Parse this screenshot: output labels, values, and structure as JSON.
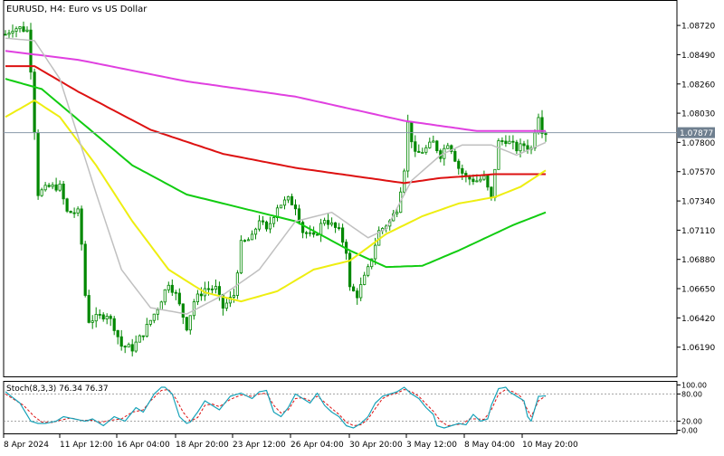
{
  "title": "EURUSD, H4:  Euro vs US Dollar",
  "chart_data": {
    "type": "candlestick",
    "symbol": "EURUSD",
    "timeframe": "H4",
    "description": "Euro vs US Dollar",
    "current_price": 1.07877,
    "current_price_label": "1.07877",
    "ylim": [
      1.0596,
      1.0892
    ],
    "price_ticks": [
      "1.08720",
      "1.08490",
      "1.08260",
      "1.08030",
      "1.07800",
      "1.07570",
      "1.07340",
      "1.07110",
      "1.06880",
      "1.06650",
      "1.06420",
      "1.06190"
    ],
    "x_labels": [
      "8 Apr 2024",
      "11 Apr 12:00",
      "16 Apr 04:00",
      "18 Apr 20:00",
      "23 Apr 12:00",
      "26 Apr 04:00",
      "30 Apr 20:00",
      "3 May 12:00",
      "8 May 04:00",
      "10 May 20:00"
    ],
    "price_anchors": [
      [
        0,
        1.0865
      ],
      [
        2,
        1.087
      ],
      [
        4,
        1.087
      ],
      [
        6,
        1.0868
      ],
      [
        7,
        1.0838
      ],
      [
        8,
        1.079
      ],
      [
        9,
        1.074
      ],
      [
        12,
        1.0745
      ],
      [
        15,
        1.0745
      ],
      [
        17,
        1.0725
      ],
      [
        20,
        1.0725
      ],
      [
        21,
        1.07
      ],
      [
        22,
        1.066
      ],
      [
        23,
        1.064
      ],
      [
        26,
        1.0643
      ],
      [
        28,
        1.0645
      ],
      [
        30,
        1.0635
      ],
      [
        32,
        1.062
      ],
      [
        35,
        1.0618
      ],
      [
        38,
        1.063
      ],
      [
        42,
        1.065
      ],
      [
        45,
        1.067
      ],
      [
        47,
        1.066
      ],
      [
        50,
        1.0635
      ],
      [
        52,
        1.0655
      ],
      [
        55,
        1.0665
      ],
      [
        58,
        1.0665
      ],
      [
        60,
        1.065
      ],
      [
        63,
        1.066
      ],
      [
        65,
        1.07
      ],
      [
        68,
        1.0705
      ],
      [
        70,
        1.072
      ],
      [
        72,
        1.071
      ],
      [
        75,
        1.073
      ],
      [
        78,
        1.0735
      ],
      [
        80,
        1.073
      ],
      [
        82,
        1.071
      ],
      [
        85,
        1.0705
      ],
      [
        88,
        1.072
      ],
      [
        90,
        1.0715
      ],
      [
        92,
        1.071
      ],
      [
        94,
        1.0695
      ],
      [
        95,
        1.0665
      ],
      [
        97,
        1.066
      ],
      [
        100,
        1.068
      ],
      [
        103,
        1.071
      ],
      [
        106,
        1.0718
      ],
      [
        108,
        1.0728
      ],
      [
        110,
        1.076
      ],
      [
        111,
        1.0795
      ],
      [
        113,
        1.077
      ],
      [
        116,
        1.0775
      ],
      [
        118,
        1.078
      ],
      [
        120,
        1.077
      ],
      [
        122,
        1.078
      ],
      [
        123,
        1.0775
      ],
      [
        125,
        1.076
      ],
      [
        127,
        1.0752
      ],
      [
        130,
        1.075
      ],
      [
        132,
        1.0752
      ],
      [
        134,
        1.0735
      ],
      [
        135,
        1.076
      ],
      [
        136,
        1.078
      ],
      [
        138,
        1.0782
      ],
      [
        141,
        1.0775
      ],
      [
        143,
        1.0778
      ],
      [
        145,
        1.0775
      ],
      [
        146,
        1.079
      ],
      [
        147,
        1.0802
      ],
      [
        148,
        1.079
      ],
      [
        149,
        1.07877
      ]
    ],
    "moving_averages": [
      {
        "color": "#e040e0",
        "width": 2,
        "anchors": [
          [
            0,
            1.0852
          ],
          [
            20,
            1.0845
          ],
          [
            50,
            1.0828
          ],
          [
            80,
            1.0816
          ],
          [
            110,
            1.0797
          ],
          [
            130,
            1.0789
          ],
          [
            149,
            1.0789
          ]
        ]
      },
      {
        "color": "#dd1111",
        "width": 2,
        "anchors": [
          [
            0,
            1.084
          ],
          [
            8,
            1.084
          ],
          [
            20,
            1.082
          ],
          [
            40,
            1.079
          ],
          [
            60,
            1.0771
          ],
          [
            80,
            1.076
          ],
          [
            100,
            1.0752
          ],
          [
            110,
            1.0748
          ],
          [
            120,
            1.0752
          ],
          [
            135,
            1.0755
          ],
          [
            149,
            1.0755
          ]
        ]
      },
      {
        "color": "#11cc11",
        "width": 2,
        "anchors": [
          [
            0,
            1.083
          ],
          [
            10,
            1.0822
          ],
          [
            20,
            1.0798
          ],
          [
            35,
            1.0762
          ],
          [
            50,
            1.0739
          ],
          [
            70,
            1.0725
          ],
          [
            80,
            1.0718
          ],
          [
            95,
            1.0695
          ],
          [
            105,
            1.0682
          ],
          [
            115,
            1.0683
          ],
          [
            125,
            1.0695
          ],
          [
            140,
            1.0715
          ],
          [
            149,
            1.0725
          ]
        ]
      },
      {
        "color": "#eeee11",
        "width": 2,
        "anchors": [
          [
            0,
            1.08
          ],
          [
            8,
            1.0813
          ],
          [
            15,
            1.08
          ],
          [
            25,
            1.0762
          ],
          [
            35,
            1.0718
          ],
          [
            45,
            1.068
          ],
          [
            55,
            1.0662
          ],
          [
            65,
            1.0655
          ],
          [
            75,
            1.0663
          ],
          [
            85,
            1.068
          ],
          [
            95,
            1.0687
          ],
          [
            105,
            1.0708
          ],
          [
            115,
            1.0722
          ],
          [
            125,
            1.0732
          ],
          [
            135,
            1.0737
          ],
          [
            142,
            1.0745
          ],
          [
            149,
            1.0758
          ]
        ]
      },
      {
        "color": "#c0c0c0",
        "width": 1.5,
        "anchors": [
          [
            0,
            1.0862
          ],
          [
            8,
            1.086
          ],
          [
            15,
            1.083
          ],
          [
            25,
            1.074
          ],
          [
            32,
            1.068
          ],
          [
            40,
            1.065
          ],
          [
            50,
            1.0645
          ],
          [
            60,
            1.066
          ],
          [
            70,
            1.068
          ],
          [
            80,
            1.0718
          ],
          [
            90,
            1.0725
          ],
          [
            100,
            1.0705
          ],
          [
            105,
            1.0712
          ],
          [
            112,
            1.075
          ],
          [
            120,
            1.077
          ],
          [
            126,
            1.0778
          ],
          [
            134,
            1.0778
          ],
          [
            141,
            1.077
          ],
          [
            149,
            1.078
          ]
        ]
      }
    ],
    "stochastic": {
      "label": "Stoch(8,3,3) 76.34 76.37",
      "ylim": [
        0,
        100
      ],
      "levels": [
        80,
        20
      ],
      "ticks": [
        "100.00",
        "80.00",
        "20.00",
        "0.00"
      ],
      "main_color": "#17a2b8",
      "signal_color": "#dd1111",
      "main_anchors": [
        [
          0,
          85
        ],
        [
          4,
          60
        ],
        [
          7,
          20
        ],
        [
          9,
          15
        ],
        [
          11,
          15
        ],
        [
          14,
          20
        ],
        [
          16,
          30
        ],
        [
          19,
          25
        ],
        [
          22,
          20
        ],
        [
          24,
          25
        ],
        [
          27,
          10
        ],
        [
          30,
          30
        ],
        [
          33,
          20
        ],
        [
          36,
          50
        ],
        [
          38,
          40
        ],
        [
          41,
          80
        ],
        [
          43,
          95
        ],
        [
          44,
          95
        ],
        [
          46,
          80
        ],
        [
          48,
          30
        ],
        [
          50,
          15
        ],
        [
          51,
          18
        ],
        [
          53,
          40
        ],
        [
          55,
          65
        ],
        [
          57,
          55
        ],
        [
          59,
          45
        ],
        [
          62,
          75
        ],
        [
          65,
          82
        ],
        [
          68,
          70
        ],
        [
          70,
          85
        ],
        [
          72,
          88
        ],
        [
          74,
          40
        ],
        [
          76,
          30
        ],
        [
          78,
          50
        ],
        [
          80,
          80
        ],
        [
          82,
          70
        ],
        [
          84,
          60
        ],
        [
          86,
          82
        ],
        [
          88,
          55
        ],
        [
          90,
          40
        ],
        [
          92,
          30
        ],
        [
          94,
          10
        ],
        [
          96,
          5
        ],
        [
          98,
          15
        ],
        [
          100,
          30
        ],
        [
          102,
          60
        ],
        [
          104,
          75
        ],
        [
          106,
          80
        ],
        [
          108,
          85
        ],
        [
          110,
          95
        ],
        [
          112,
          80
        ],
        [
          114,
          70
        ],
        [
          116,
          50
        ],
        [
          118,
          35
        ],
        [
          119,
          10
        ],
        [
          121,
          5
        ],
        [
          123,
          10
        ],
        [
          125,
          15
        ],
        [
          127,
          12
        ],
        [
          129,
          35
        ],
        [
          131,
          20
        ],
        [
          133,
          25
        ],
        [
          134,
          55
        ],
        [
          136,
          92
        ],
        [
          138,
          95
        ],
        [
          139,
          85
        ],
        [
          141,
          75
        ],
        [
          143,
          65
        ],
        [
          144,
          30
        ],
        [
          145,
          20
        ],
        [
          147,
          75
        ],
        [
          149,
          76
        ]
      ],
      "signal_anchors": [
        [
          0,
          80
        ],
        [
          5,
          55
        ],
        [
          8,
          30
        ],
        [
          10,
          18
        ],
        [
          13,
          17
        ],
        [
          15,
          22
        ],
        [
          18,
          27
        ],
        [
          21,
          22
        ],
        [
          24,
          22
        ],
        [
          26,
          17
        ],
        [
          29,
          22
        ],
        [
          32,
          25
        ],
        [
          35,
          40
        ],
        [
          38,
          45
        ],
        [
          40,
          65
        ],
        [
          43,
          88
        ],
        [
          45,
          90
        ],
        [
          47,
          70
        ],
        [
          49,
          40
        ],
        [
          51,
          20
        ],
        [
          53,
          28
        ],
        [
          55,
          55
        ],
        [
          57,
          58
        ],
        [
          59,
          52
        ],
        [
          62,
          68
        ],
        [
          65,
          78
        ],
        [
          68,
          75
        ],
        [
          70,
          80
        ],
        [
          72,
          82
        ],
        [
          74,
          55
        ],
        [
          76,
          38
        ],
        [
          78,
          45
        ],
        [
          80,
          70
        ],
        [
          82,
          72
        ],
        [
          84,
          65
        ],
        [
          86,
          75
        ],
        [
          88,
          62
        ],
        [
          90,
          48
        ],
        [
          92,
          35
        ],
        [
          94,
          18
        ],
        [
          96,
          10
        ],
        [
          98,
          12
        ],
        [
          100,
          25
        ],
        [
          102,
          48
        ],
        [
          104,
          70
        ],
        [
          106,
          78
        ],
        [
          108,
          82
        ],
        [
          110,
          90
        ],
        [
          112,
          85
        ],
        [
          114,
          75
        ],
        [
          116,
          58
        ],
        [
          118,
          42
        ],
        [
          120,
          20
        ],
        [
          122,
          10
        ],
        [
          124,
          12
        ],
        [
          126,
          14
        ],
        [
          128,
          25
        ],
        [
          130,
          25
        ],
        [
          132,
          24
        ],
        [
          134,
          45
        ],
        [
          136,
          80
        ],
        [
          138,
          90
        ],
        [
          140,
          85
        ],
        [
          142,
          75
        ],
        [
          144,
          45
        ],
        [
          145,
          30
        ],
        [
          147,
          65
        ],
        [
          149,
          76
        ]
      ]
    }
  }
}
